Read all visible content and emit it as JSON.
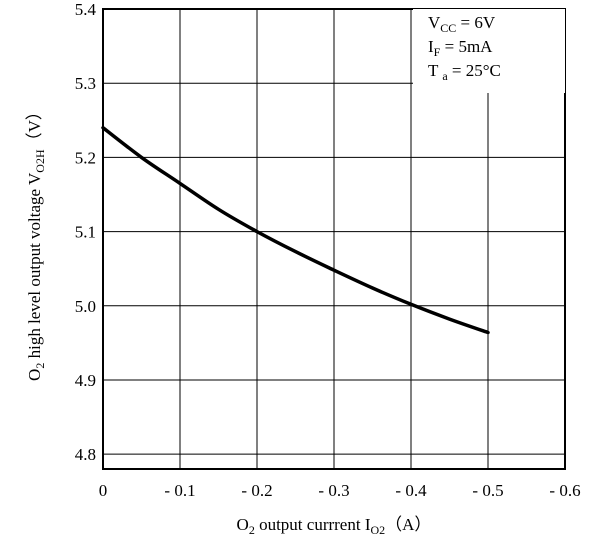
{
  "chart_data": {
    "type": "line",
    "xlabel": {
      "prefix": "O",
      "prefix_sub": "2",
      "main": " output currrent I",
      "main_sub": "O2",
      "unit": "（A）"
    },
    "ylabel": {
      "prefix": "O",
      "prefix_sub": "2",
      "main": " high level output voltage V",
      "main_sub": "O2H",
      "unit": "（V）"
    },
    "x_ticks": [
      "0",
      "- 0.1",
      "- 0.2",
      "- 0.3",
      "- 0.4",
      "- 0.5",
      "- 0.6"
    ],
    "y_ticks": [
      "5.4",
      "5.3",
      "5.2",
      "5.1",
      "5.0",
      "4.9",
      "4.8"
    ],
    "xlim": [
      0,
      -0.6
    ],
    "ylim": [
      4.78,
      5.4
    ],
    "grid": true,
    "conditions": [
      {
        "main": "V",
        "sub": "CC",
        "rest": " = 6V"
      },
      {
        "main": "I",
        "sub": "F",
        "rest": " = 5mA"
      },
      {
        "main": "T ",
        "sub": "a",
        "rest": " = 25°C"
      }
    ],
    "series": [
      {
        "x": [
          0,
          -0.05,
          -0.1,
          -0.15,
          -0.2,
          -0.25,
          -0.3,
          -0.35,
          -0.4,
          -0.45,
          -0.5
        ],
        "y": [
          5.24,
          5.2,
          5.165,
          5.13,
          5.1,
          5.073,
          5.048,
          5.024,
          5.002,
          4.982,
          4.964
        ]
      }
    ]
  }
}
